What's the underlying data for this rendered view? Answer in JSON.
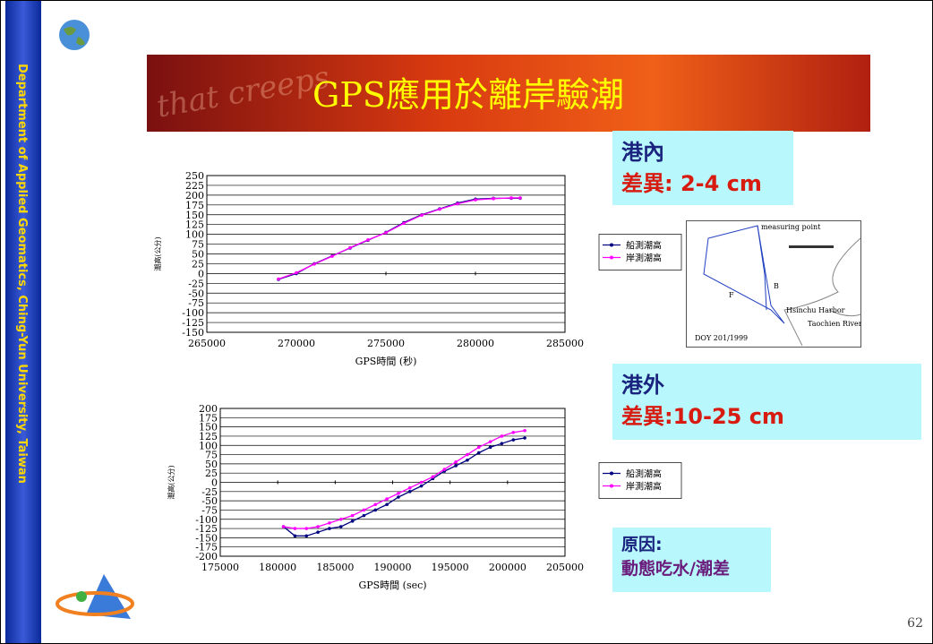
{
  "sidebar": "Department of Applied Geomatics, Ching-Yun University, Taiwan",
  "banner_text": "that creeps",
  "title": "GPS應用於離岸驗潮",
  "boxes": [
    {
      "line1": "港內",
      "line2": "差異: 2-4 cm"
    },
    {
      "line1": "港外",
      "line2": "差異:10-25 cm"
    },
    {
      "line1": "原因:",
      "line2": "動態吃水/潮差"
    }
  ],
  "map": {
    "labels": [
      "measuring point",
      "B",
      "F",
      "Hsinchu Harbor",
      "Taochien River",
      "DOY 201/1999"
    ]
  },
  "page_number": "62",
  "chart_data": [
    {
      "type": "line",
      "xlabel": "GPS時間 (秒)",
      "ylabel": "潮高(公分)",
      "legend": "right",
      "x": [
        269000,
        270000,
        271000,
        272000,
        273000,
        274000,
        275000,
        276000,
        277000,
        278000,
        279000,
        280000,
        281000,
        282000,
        282500
      ],
      "series": [
        {
          "name": "船測潮高",
          "color": "#000080",
          "values": [
            -15,
            0,
            25,
            45,
            65,
            85,
            105,
            130,
            150,
            165,
            180,
            190,
            192,
            192,
            192
          ]
        },
        {
          "name": "岸測潮高",
          "color": "#ff00ff",
          "values": [
            -14,
            2,
            24,
            44,
            66,
            86,
            104,
            128,
            149,
            164,
            178,
            188,
            191,
            193,
            193
          ]
        }
      ],
      "xlim": [
        265000,
        285000
      ],
      "xticks": [
        265000,
        270000,
        275000,
        280000,
        285000
      ],
      "ylim": [
        -150,
        250
      ],
      "yticks": [
        -150,
        -125,
        -100,
        -75,
        -50,
        -25,
        0,
        25,
        50,
        75,
        100,
        125,
        150,
        175,
        200,
        225,
        250
      ],
      "grid": true
    },
    {
      "type": "line",
      "xlabel": "GPS時間 (sec)",
      "ylabel": "潮高(公分)",
      "legend": "right",
      "x": [
        180500,
        181500,
        182500,
        183500,
        184500,
        185500,
        186500,
        187500,
        188500,
        189500,
        190500,
        191500,
        192500,
        193500,
        194500,
        195500,
        196500,
        197500,
        198500,
        199500,
        200500,
        201500
      ],
      "series": [
        {
          "name": "船測潮高",
          "color": "#000080",
          "values": [
            -120,
            -145,
            -145,
            -135,
            -125,
            -120,
            -105,
            -90,
            -75,
            -60,
            -40,
            -25,
            -10,
            10,
            30,
            45,
            60,
            80,
            95,
            105,
            115,
            120
          ]
        },
        {
          "name": "岸測潮高",
          "color": "#ff00ff",
          "values": [
            -120,
            -125,
            -125,
            -120,
            -110,
            -100,
            -90,
            -75,
            -60,
            -45,
            -30,
            -15,
            0,
            15,
            35,
            55,
            75,
            95,
            110,
            125,
            135,
            140
          ]
        }
      ],
      "xlim": [
        175000,
        205000
      ],
      "xticks": [
        175000,
        180000,
        185000,
        190000,
        195000,
        200000,
        205000
      ],
      "ylim": [
        -200,
        200
      ],
      "yticks": [
        -200,
        -175,
        -150,
        -125,
        -100,
        -75,
        -50,
        -25,
        0,
        25,
        50,
        75,
        100,
        125,
        150,
        175,
        200
      ],
      "grid": true
    }
  ]
}
